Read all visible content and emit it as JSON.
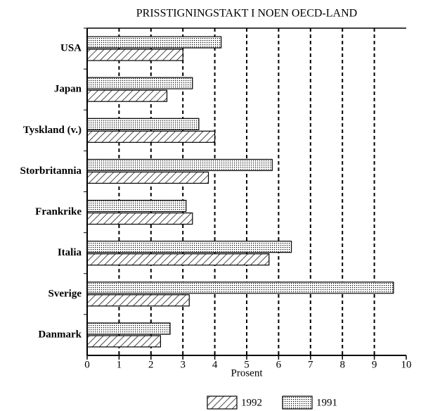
{
  "chart_data": {
    "type": "barh",
    "title": "PRISSTIGNINGSTAKT I NOEN OECD-LAND",
    "xlabel": "Prosent",
    "categories": [
      "USA",
      "Japan",
      "Tyskland (v.)",
      "Storbritannia",
      "Frankrike",
      "Italia",
      "Sverige",
      "Danmark"
    ],
    "series": [
      {
        "name": "1992",
        "color": "#000000",
        "pattern": "hatch",
        "values": [
          3.0,
          2.5,
          4.0,
          3.8,
          3.3,
          5.7,
          3.2,
          2.3
        ]
      },
      {
        "name": "1991",
        "color": "#000000",
        "pattern": "dots",
        "values": [
          4.2,
          3.3,
          3.5,
          5.8,
          3.1,
          6.4,
          9.6,
          2.6
        ]
      }
    ],
    "xlim": [
      0,
      10
    ],
    "xticks": [
      0,
      1,
      2,
      3,
      4,
      5,
      6,
      7,
      8,
      9,
      10
    ],
    "grid": true,
    "legend": "bottom"
  }
}
